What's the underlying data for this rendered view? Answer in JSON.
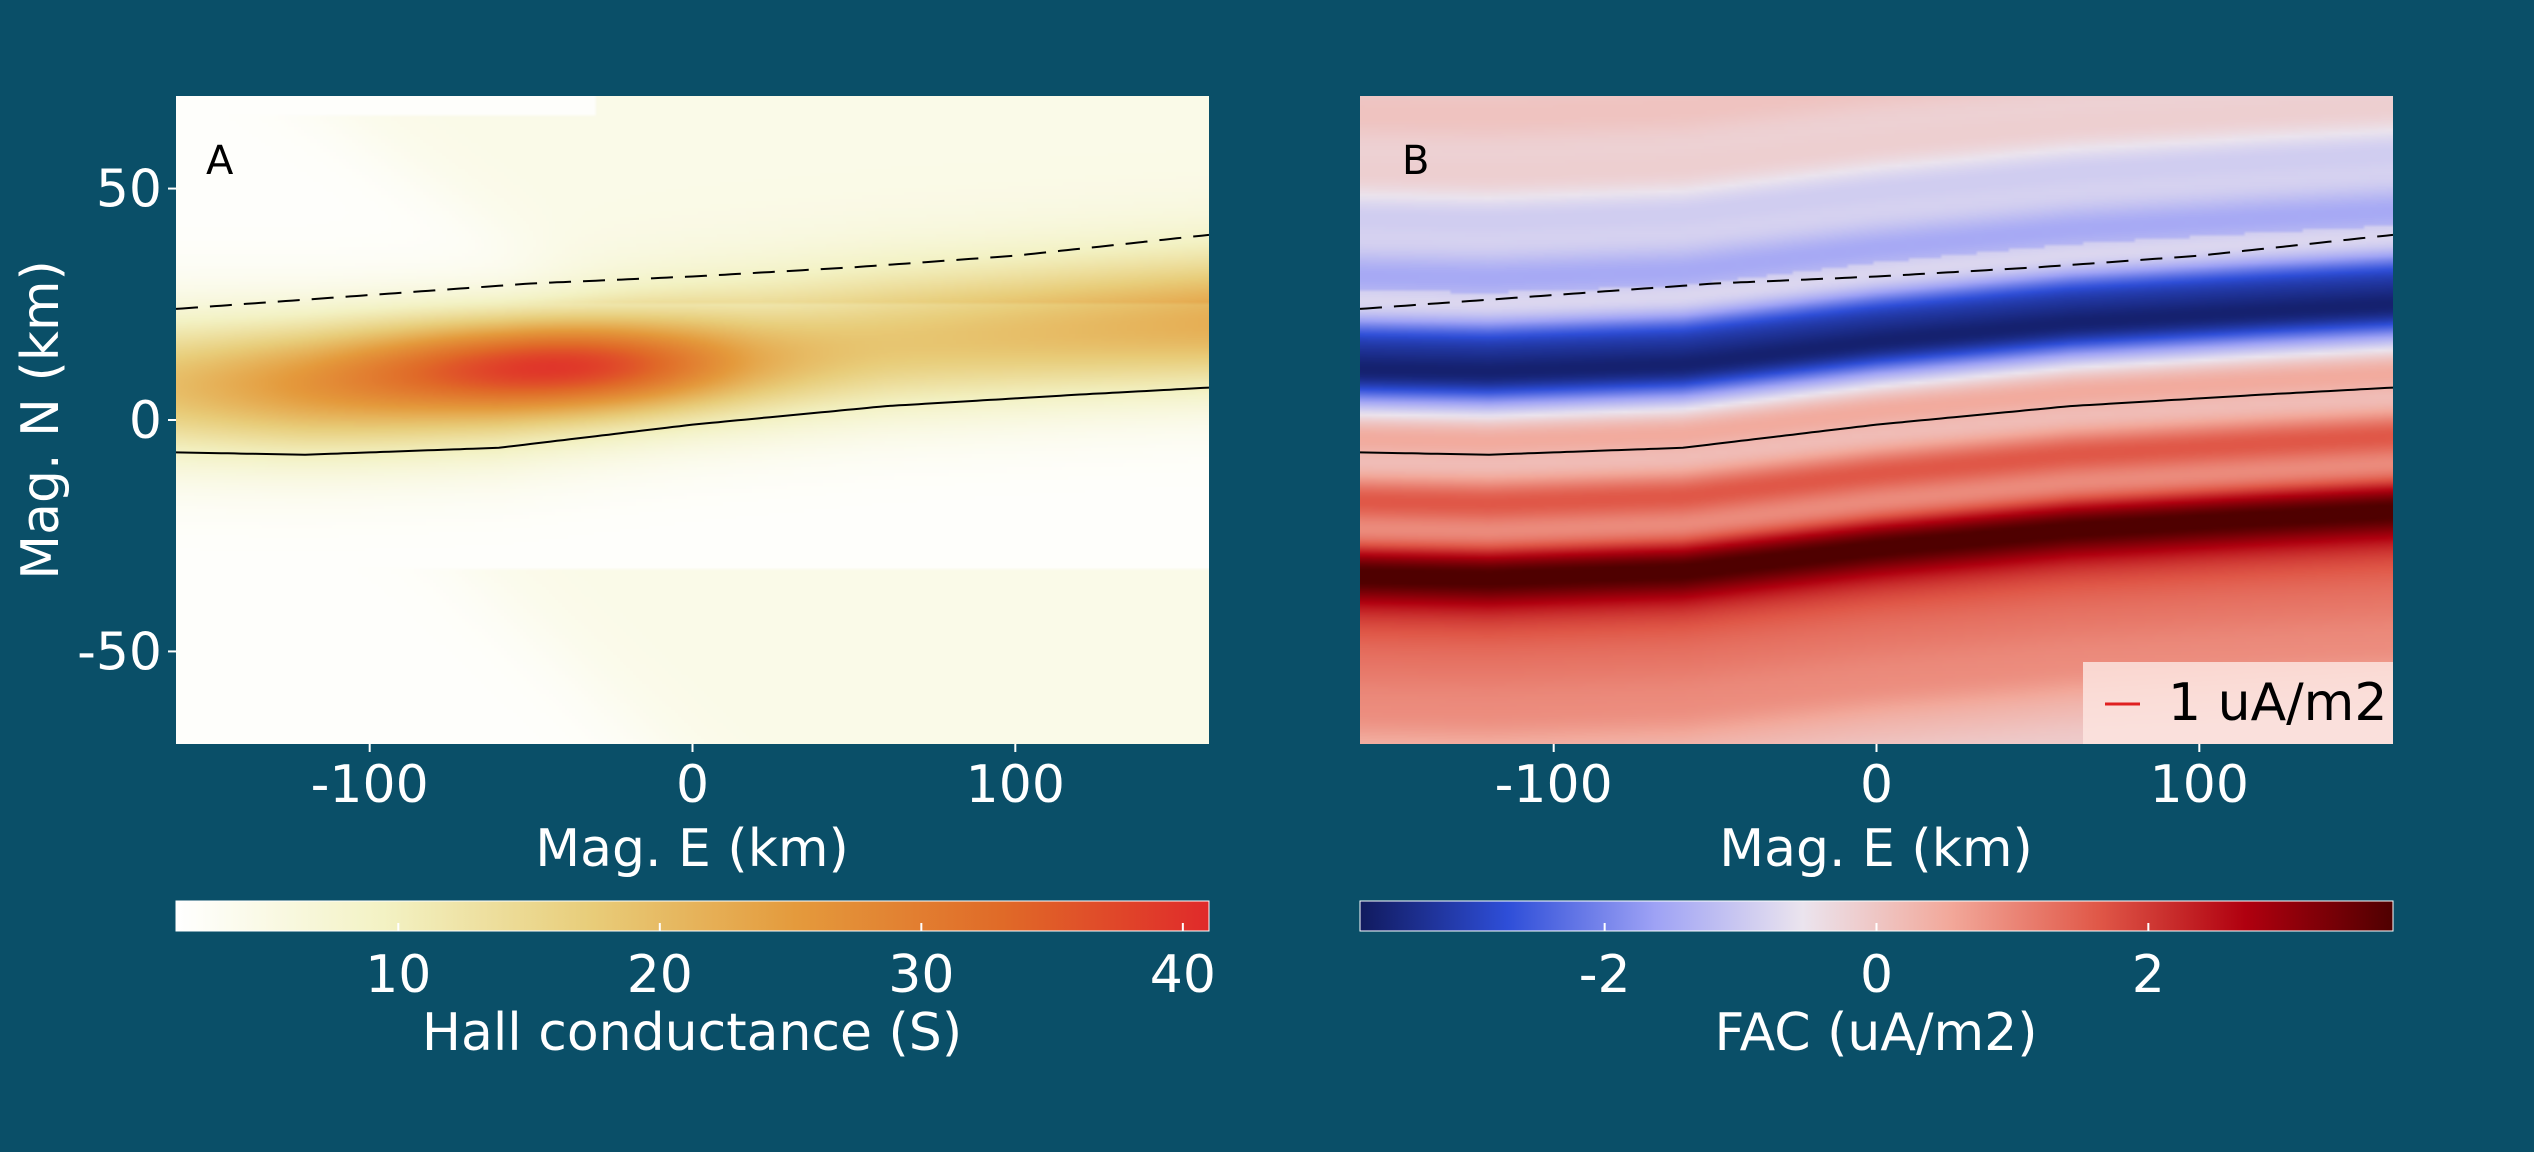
{
  "colors": {
    "background": "#0a4f68",
    "hall_cmap": [
      "#ffffff",
      "#f3f2c4",
      "#e8cd7a",
      "#e49a3c",
      "#e06a28",
      "#e02a2a"
    ],
    "fac_cmap": [
      "#111a5e",
      "#2e4ed8",
      "#9ea2f5",
      "#ebe4ee",
      "#f2a89a",
      "#e05848",
      "#b0000f",
      "#4f0000"
    ],
    "solid_line": "#000000",
    "dashed_line": "#000000",
    "legend_line": "#e02020"
  },
  "chart_data": [
    {
      "type": "heatmap",
      "panel_label": "A",
      "xlabel": "Mag. E (km)",
      "ylabel": "Mag. N (km)",
      "xlim": [
        -160,
        160
      ],
      "ylim": [
        -70,
        70
      ],
      "xticks": [
        -100,
        0,
        100
      ],
      "xtick_labels": [
        "-100",
        "0",
        "100"
      ],
      "yticks": [
        50,
        0,
        -50
      ],
      "ytick_labels": [
        "50",
        "0",
        "-50"
      ],
      "colorbar": {
        "label": "Hall conductance (S)",
        "range": [
          1.5,
          41
        ],
        "ticks": [
          10,
          20,
          30,
          40
        ],
        "tick_labels": [
          "10",
          "20",
          "30",
          "40"
        ]
      },
      "field": {
        "description_values": "Hall conductance peaks ~40 S near (-40, 12); band of elevated values (~20-35 S) along y≈10-20 km; weak background (~5 S) in upper region and lower-right; near zero elsewhere"
      },
      "lines": [
        {
          "style": "solid",
          "x": [
            -160,
            -120,
            -60,
            0,
            60,
            120,
            160
          ],
          "y": [
            -7,
            -7.5,
            -6,
            -1,
            3,
            5.5,
            7
          ]
        },
        {
          "style": "dashed",
          "x": [
            -160,
            -100,
            -50,
            0,
            50,
            100,
            160
          ],
          "y": [
            24,
            27,
            29.5,
            31,
            33,
            35.5,
            40
          ]
        }
      ]
    },
    {
      "type": "heatmap",
      "panel_label": "B",
      "xlabel": "Mag. E (km)",
      "xlim": [
        -160,
        160
      ],
      "ylim": [
        -70,
        70
      ],
      "xticks": [
        -100,
        0,
        100
      ],
      "xtick_labels": [
        "-100",
        "0",
        "100"
      ],
      "colorbar": {
        "label": "FAC (uA/m2)",
        "range": [
          -3.8,
          3.8
        ],
        "ticks": [
          -2,
          0,
          2
        ],
        "tick_labels": [
          "-2",
          "0",
          "2"
        ]
      },
      "legend": {
        "label": "1 uA/m2",
        "placement": "lower-right"
      },
      "lines": [
        {
          "style": "solid",
          "x": [
            -160,
            -120,
            -60,
            0,
            60,
            120,
            160
          ],
          "y": [
            -7,
            -7.5,
            -6,
            -1,
            3,
            5.5,
            7
          ]
        },
        {
          "style": "dashed",
          "x": [
            -160,
            -100,
            -50,
            0,
            50,
            100,
            160
          ],
          "y": [
            24,
            27,
            29.5,
            31,
            33,
            35.5,
            40
          ]
        }
      ]
    }
  ]
}
